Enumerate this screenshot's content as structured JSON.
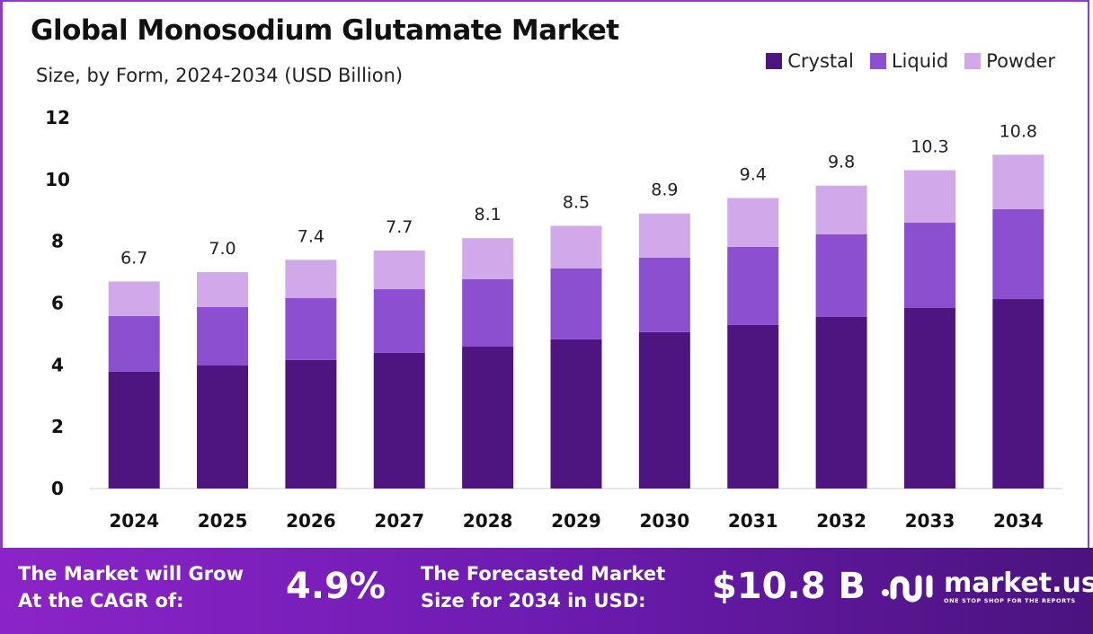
{
  "chart_data": {
    "type": "bar",
    "stacked": true,
    "title": "Global Monosodium Glutamate Market",
    "subtitle": "Size, by Form, 2024-2034 (USD Billion)",
    "categories": [
      "2024",
      "2025",
      "2026",
      "2027",
      "2028",
      "2029",
      "2030",
      "2031",
      "2032",
      "2033",
      "2034"
    ],
    "series": [
      {
        "name": "Crystal",
        "color": "#4e1580",
        "values": [
          3.78,
          3.98,
          4.16,
          4.39,
          4.59,
          4.83,
          5.06,
          5.29,
          5.55,
          5.84,
          6.13
        ]
      },
      {
        "name": "Liquid",
        "color": "#8b4fd0",
        "values": [
          1.8,
          1.89,
          2.0,
          2.06,
          2.18,
          2.29,
          2.41,
          2.53,
          2.68,
          2.76,
          2.91
        ]
      },
      {
        "name": "Powder",
        "color": "#d1a8ea",
        "values": [
          1.12,
          1.13,
          1.24,
          1.25,
          1.33,
          1.38,
          1.43,
          1.58,
          1.57,
          1.7,
          1.76
        ]
      }
    ],
    "totals_labels": [
      "6.7",
      "7.0",
      "7.4",
      "7.7",
      "8.1",
      "8.5",
      "8.9",
      "9.4",
      "9.8",
      "10.3",
      "10.8"
    ],
    "yticks": [
      "0",
      "2",
      "4",
      "6",
      "8",
      "10",
      "12"
    ],
    "ylim": [
      0,
      12
    ],
    "grid": false,
    "legend": "top-right"
  },
  "footer": {
    "cagr_label_1": "The Market will Grow",
    "cagr_label_2": "At the CAGR of:",
    "cagr_value": "4.9%",
    "forecast_label_1": "The Forecasted Market",
    "forecast_label_2": "Size for 2034 in USD:",
    "forecast_value": "$10.8 B",
    "logo_name": "market.us",
    "logo_tagline": "ONE STOP SHOP FOR THE REPORTS"
  }
}
